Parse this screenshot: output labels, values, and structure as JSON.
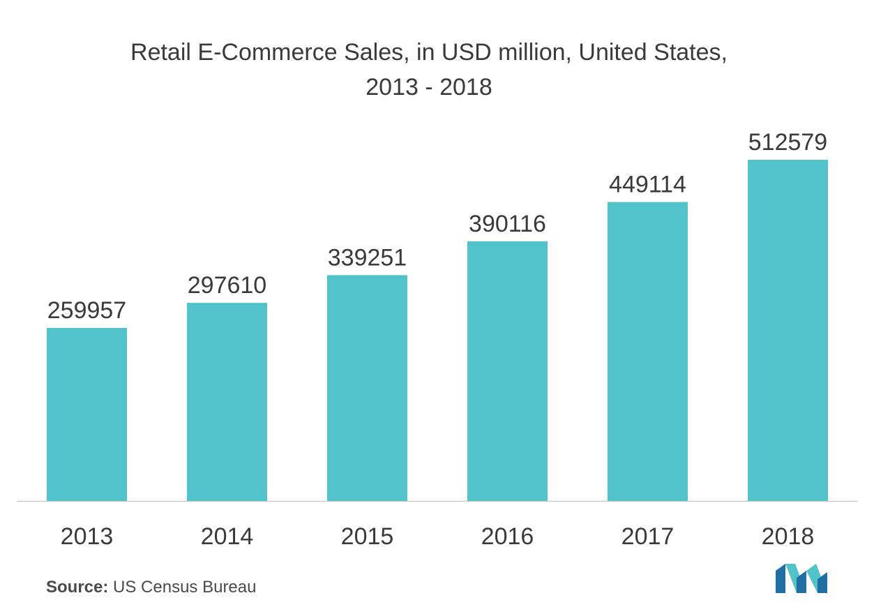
{
  "title": {
    "line1": "Retail E-Commerce Sales, in USD million, United States,",
    "line2": "2013 - 2018"
  },
  "source": {
    "label": "Source:",
    "text": "US Census Bureau"
  },
  "colors": {
    "bar": "#52c3ca",
    "axis": "#cccccc",
    "text": "#3a3a3a"
  },
  "chart_data": {
    "type": "bar",
    "title": "Retail E-Commerce Sales, in USD million, United States, 2013 - 2018",
    "xlabel": "",
    "ylabel": "",
    "categories": [
      "2013",
      "2014",
      "2015",
      "2016",
      "2017",
      "2018"
    ],
    "values": [
      259957,
      297610,
      339251,
      390116,
      449114,
      512579
    ],
    "data_labels": [
      "259957",
      "297610",
      "339251",
      "390116",
      "449114",
      "512579"
    ],
    "ylim": [
      0,
      512579
    ],
    "grid": false,
    "legend": "none"
  }
}
